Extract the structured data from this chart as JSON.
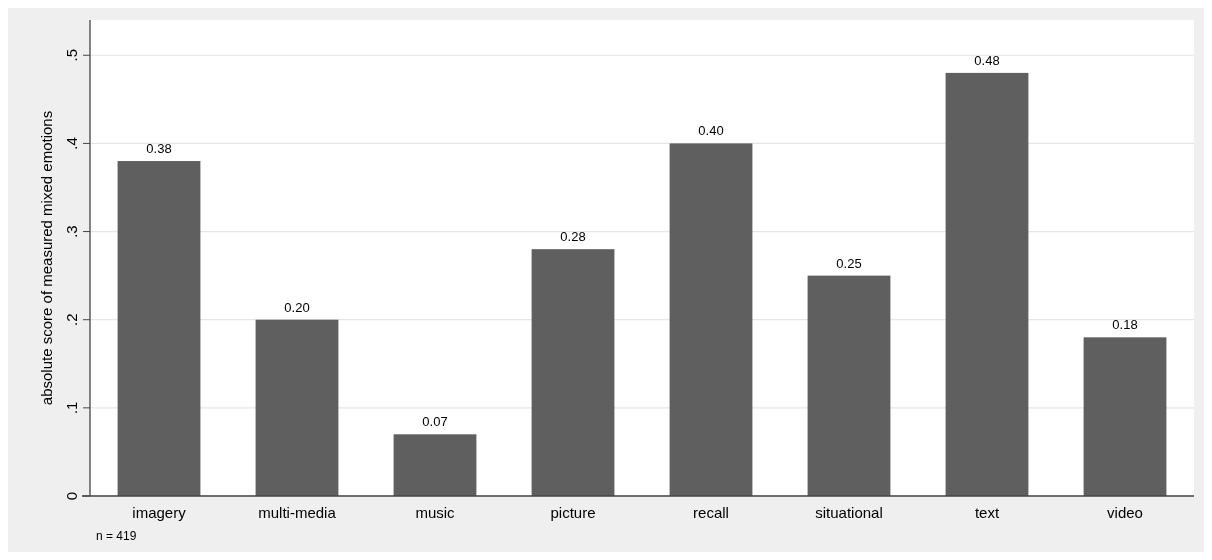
{
  "chart_data": {
    "type": "bar",
    "ylabel": "absolute score of measured mixed emotions",
    "categories": [
      "imagery",
      "multi-media",
      "music",
      "picture",
      "recall",
      "situational",
      "text",
      "video"
    ],
    "values": [
      0.38,
      0.2,
      0.07,
      0.28,
      0.4,
      0.25,
      0.48,
      0.18
    ],
    "value_labels": [
      "0.38",
      "0.20",
      "0.07",
      "0.28",
      "0.40",
      "0.25",
      "0.48",
      "0.18"
    ],
    "color": "#5f5f5f",
    "ylim": [
      0,
      0.54
    ],
    "yticks": [
      0,
      {
        "value": 0.1,
        "label": ".1"
      },
      {
        "value": 0.2,
        "label": ".2"
      },
      {
        "value": 0.3,
        "label": ".3"
      },
      {
        "value": 0.4,
        "label": ".4"
      },
      {
        "value": 0.5,
        "label": ".5"
      }
    ],
    "grid": "y",
    "annotations": [
      "n = 419"
    ]
  }
}
